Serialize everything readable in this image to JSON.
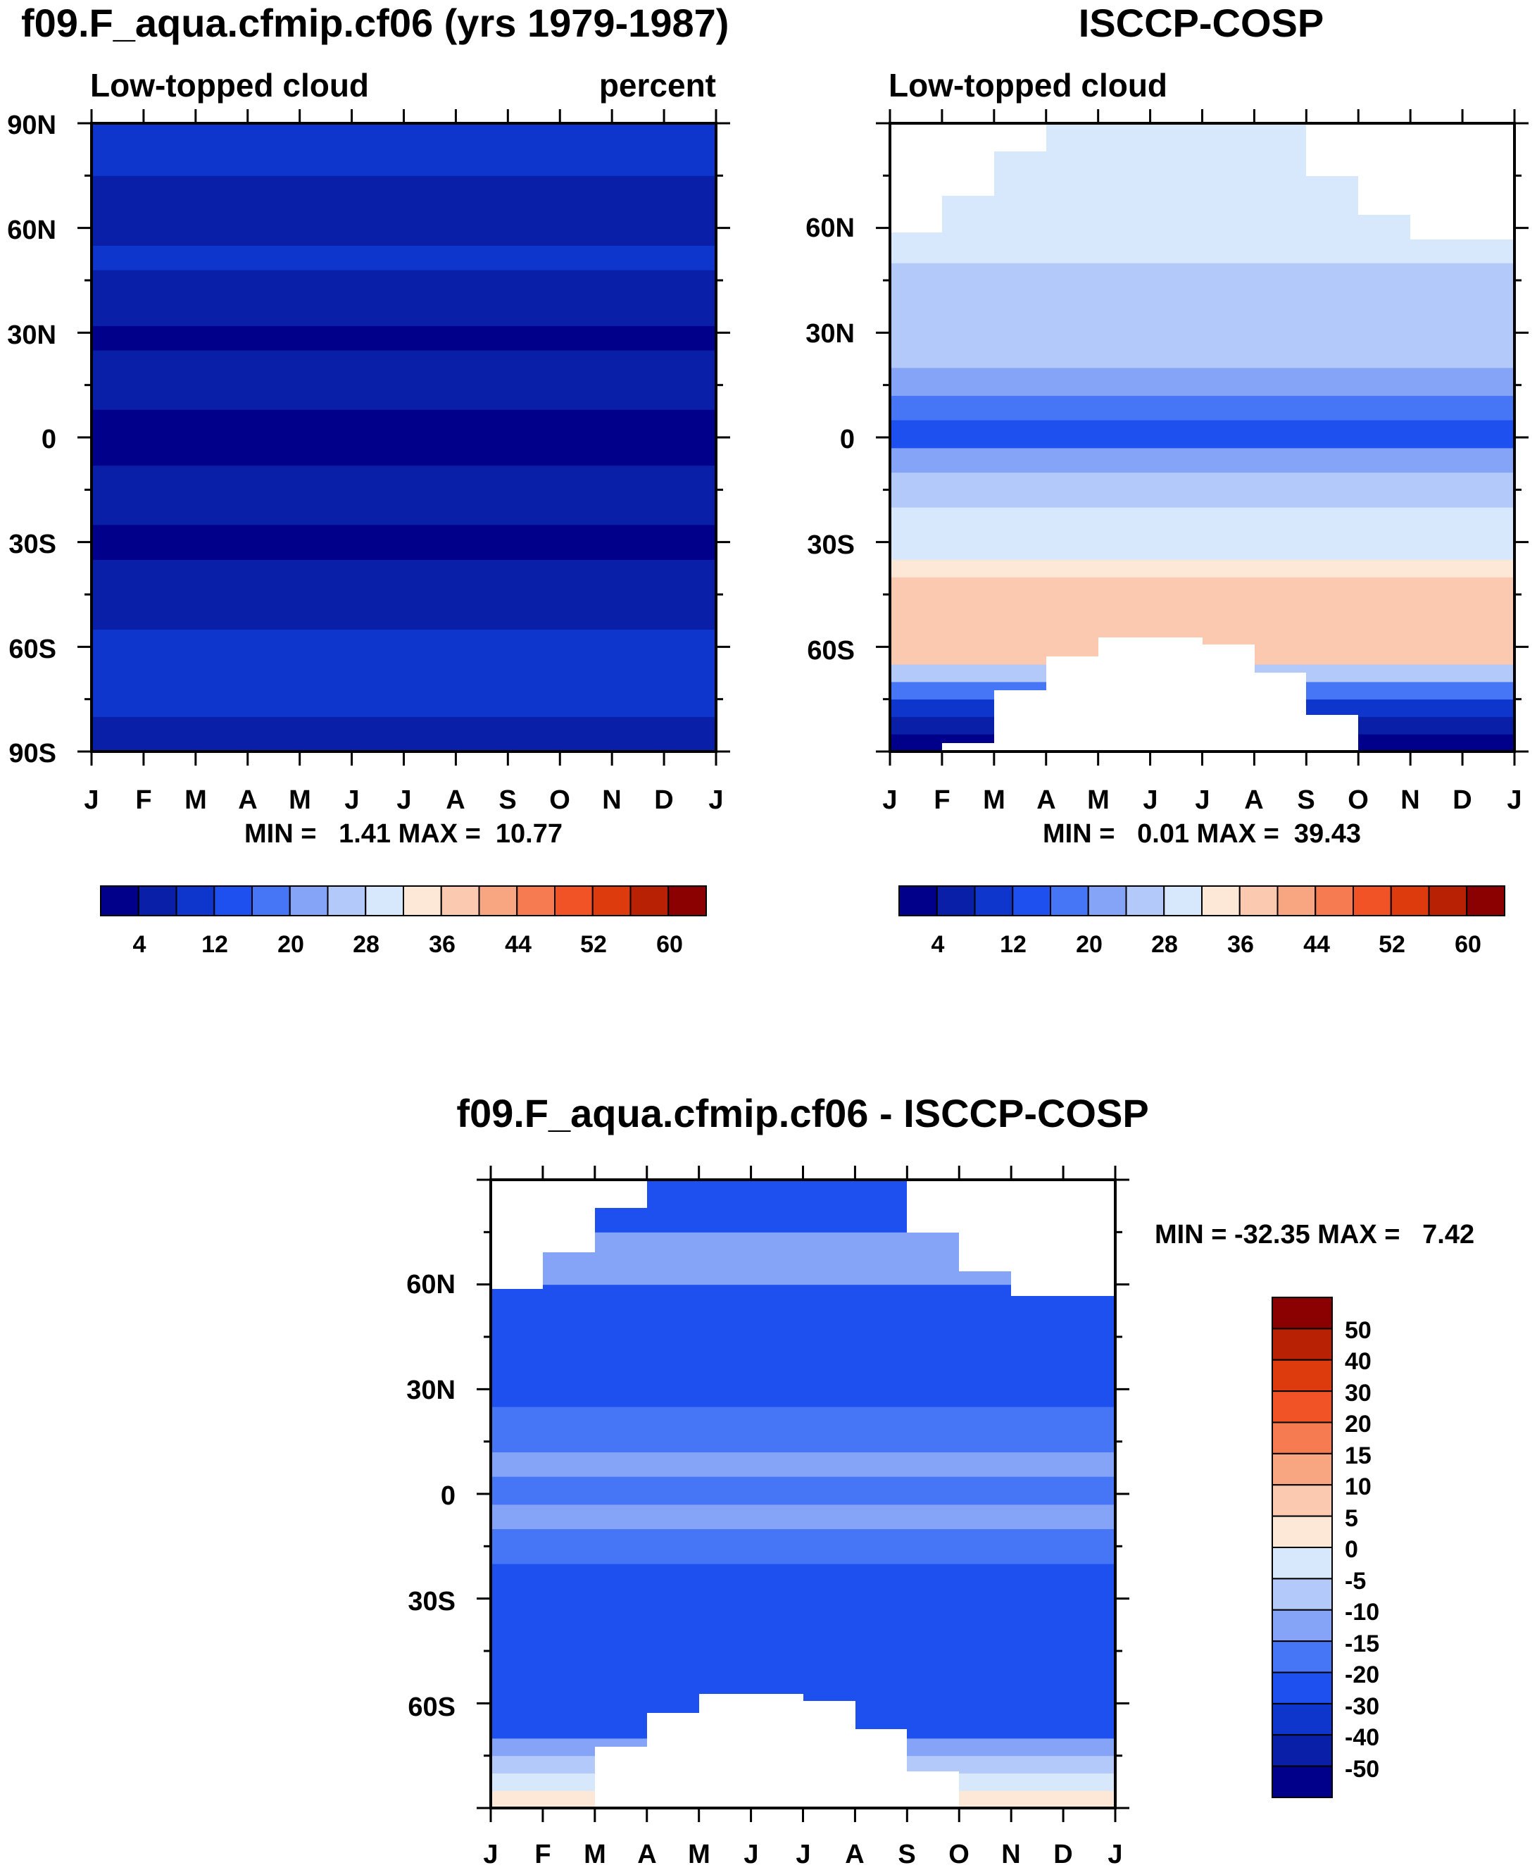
{
  "colors": {
    "seq": [
      "#00008b",
      "#0a1fa8",
      "#0e35cc",
      "#1e50f0",
      "#4675f5",
      "#85a3f7",
      "#b3c9fa",
      "#d8e8fc",
      "#fde8d8",
      "#fbc8b0",
      "#f8a582",
      "#f67b50",
      "#f15226",
      "#dd3a0e",
      "#b82104",
      "#8b0000"
    ],
    "diff": [
      "#00008b",
      "#0a1fa8",
      "#0e35cc",
      "#1e50f0",
      "#4675f5",
      "#85a3f7",
      "#b3c9fa",
      "#d8e8fc",
      "#fde8d8",
      "#fbc8b0",
      "#f8a582",
      "#f67b50",
      "#f15226",
      "#dd3a0e",
      "#b82104",
      "#8b0000"
    ]
  },
  "chart_data": [
    {
      "id": "model",
      "type": "heatmap",
      "title": "f09.F_aqua.cfmip.cf06 (yrs 1979-1987)",
      "left_subtitle": "Low-topped cloud",
      "right_subtitle": "percent",
      "xlabel": "",
      "ylabel": "",
      "x_ticks": [
        "J",
        "F",
        "M",
        "A",
        "M",
        "J",
        "J",
        "A",
        "S",
        "O",
        "N",
        "D",
        "J"
      ],
      "y_ticks": [
        "90N",
        "60N",
        "30N",
        "0",
        "30S",
        "60S",
        "90S"
      ],
      "stats_text": "MIN =   1.41 MAX =  10.77",
      "bands": [
        {
          "lat": [
            -90,
            -80
          ],
          "value": 7
        },
        {
          "lat": [
            -80,
            -70
          ],
          "value": 8
        },
        {
          "lat": [
            -70,
            -60
          ],
          "value": 9
        },
        {
          "lat": [
            -60,
            -55
          ],
          "value": 8
        },
        {
          "lat": [
            -55,
            -45
          ],
          "value": 7
        },
        {
          "lat": [
            -45,
            -35
          ],
          "value": 6
        },
        {
          "lat": [
            -35,
            -25
          ],
          "value": 3
        },
        {
          "lat": [
            -25,
            -15
          ],
          "value": 5
        },
        {
          "lat": [
            -15,
            -8
          ],
          "value": 6
        },
        {
          "lat": [
            -8,
            8
          ],
          "value": 2
        },
        {
          "lat": [
            8,
            15
          ],
          "value": 4
        },
        {
          "lat": [
            15,
            25
          ],
          "value": 5
        },
        {
          "lat": [
            25,
            32
          ],
          "value": 2
        },
        {
          "lat": [
            32,
            40
          ],
          "value": 6
        },
        {
          "lat": [
            40,
            48
          ],
          "value": 7
        },
        {
          "lat": [
            48,
            55
          ],
          "value": 8
        },
        {
          "lat": [
            55,
            63
          ],
          "value": 5
        },
        {
          "lat": [
            63,
            75
          ],
          "value": 7
        },
        {
          "lat": [
            75,
            90
          ],
          "value": 9
        }
      ],
      "colorbar": {
        "levels": [
          4,
          12,
          20,
          28,
          36,
          44,
          52,
          60
        ],
        "n_colors": 16
      }
    },
    {
      "id": "obs",
      "type": "heatmap",
      "title": "ISCCP-COSP",
      "left_subtitle": "Low-topped cloud",
      "x_ticks": [
        "J",
        "F",
        "M",
        "A",
        "M",
        "J",
        "J",
        "A",
        "S",
        "O",
        "N",
        "D",
        "J"
      ],
      "y_ticks": [
        "60N",
        "30N",
        "0",
        "30S",
        "60S"
      ],
      "stats_text": "MIN =   0.01 MAX =  39.43",
      "bands": [
        {
          "lat": [
            -90,
            -85
          ],
          "value": 1
        },
        {
          "lat": [
            -85,
            -80
          ],
          "value": 4
        },
        {
          "lat": [
            -80,
            -75
          ],
          "value": 10
        },
        {
          "lat": [
            -75,
            -70
          ],
          "value": 17
        },
        {
          "lat": [
            -70,
            -65
          ],
          "value": 25
        },
        {
          "lat": [
            -65,
            -40
          ],
          "value": 36
        },
        {
          "lat": [
            -40,
            -35
          ],
          "value": 34
        },
        {
          "lat": [
            -35,
            -20
          ],
          "value": 30
        },
        {
          "lat": [
            -20,
            -10
          ],
          "value": 26
        },
        {
          "lat": [
            -10,
            -3
          ],
          "value": 21
        },
        {
          "lat": [
            -3,
            5
          ],
          "value": 14
        },
        {
          "lat": [
            5,
            12
          ],
          "value": 18
        },
        {
          "lat": [
            12,
            20
          ],
          "value": 22
        },
        {
          "lat": [
            20,
            35
          ],
          "value": 25
        },
        {
          "lat": [
            35,
            50
          ],
          "value": 27
        },
        {
          "lat": [
            50,
            60
          ],
          "value": 29
        },
        {
          "lat": [
            60,
            75
          ],
          "value": 31
        },
        {
          "lat": [
            75,
            90
          ],
          "value": 30
        }
      ],
      "colorbar": {
        "levels": [
          4,
          12,
          20,
          28,
          36,
          44,
          52,
          60
        ],
        "n_colors": 16
      }
    },
    {
      "id": "diff",
      "type": "heatmap",
      "title": "f09.F_aqua.cfmip.cf06 - ISCCP-COSP",
      "x_ticks": [
        "J",
        "F",
        "M",
        "A",
        "M",
        "J",
        "J",
        "A",
        "S",
        "O",
        "N",
        "D",
        "J"
      ],
      "y_ticks": [
        "60N",
        "30N",
        "0",
        "30S",
        "60S"
      ],
      "stats_text": "MIN = -32.35 MAX =   7.42",
      "bands": [
        {
          "lat": [
            -90,
            -85
          ],
          "value": 3
        },
        {
          "lat": [
            -85,
            -80
          ],
          "value": -3
        },
        {
          "lat": [
            -80,
            -75
          ],
          "value": -8
        },
        {
          "lat": [
            -75,
            -70
          ],
          "value": -15
        },
        {
          "lat": [
            -70,
            -40
          ],
          "value": -25
        },
        {
          "lat": [
            -40,
            -20
          ],
          "value": -22
        },
        {
          "lat": [
            -20,
            -10
          ],
          "value": -17
        },
        {
          "lat": [
            -10,
            -3
          ],
          "value": -13
        },
        {
          "lat": [
            -3,
            5
          ],
          "value": -18
        },
        {
          "lat": [
            5,
            12
          ],
          "value": -12
        },
        {
          "lat": [
            12,
            25
          ],
          "value": -18
        },
        {
          "lat": [
            25,
            40
          ],
          "value": -21
        },
        {
          "lat": [
            40,
            60
          ],
          "value": -23
        },
        {
          "lat": [
            60,
            75
          ],
          "value": -15
        },
        {
          "lat": [
            75,
            90
          ],
          "value": -22
        }
      ],
      "colorbar": {
        "levels": [
          50,
          40,
          30,
          20,
          15,
          10,
          5,
          0,
          -5,
          -10,
          -15,
          -20,
          -30,
          -40,
          -50
        ]
      }
    }
  ]
}
